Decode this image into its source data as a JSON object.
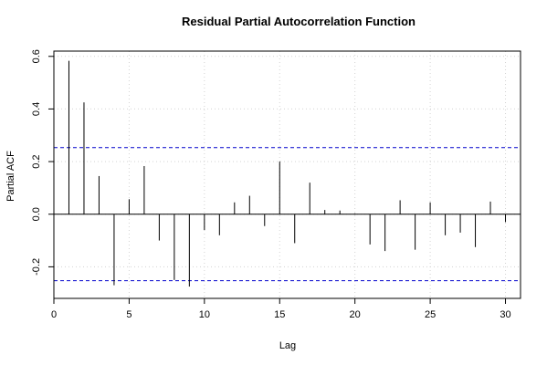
{
  "chart_data": {
    "type": "bar",
    "title": "Residual Partial Autocorrelation Function",
    "xlabel": "Lag",
    "ylabel": "Partial ACF",
    "xlim": [
      0,
      31
    ],
    "ylim": [
      -0.32,
      0.62
    ],
    "x_ticks": [
      0,
      5,
      10,
      15,
      20,
      25,
      30
    ],
    "y_ticks": [
      -0.2,
      0.0,
      0.2,
      0.4,
      0.6
    ],
    "x_tick_labels": [
      "0",
      "5",
      "10",
      "15",
      "20",
      "25",
      "30"
    ],
    "y_tick_labels": [
      "-0.2",
      "0.0",
      "0.2",
      "0.4",
      "0.6"
    ],
    "lags": [
      1,
      2,
      3,
      4,
      5,
      6,
      7,
      8,
      9,
      10,
      11,
      12,
      13,
      14,
      15,
      16,
      17,
      18,
      19,
      20,
      21,
      22,
      23,
      24,
      25,
      26,
      27,
      28,
      29,
      30
    ],
    "values": [
      0.583,
      0.425,
      0.145,
      -0.27,
      0.057,
      0.183,
      -0.1,
      -0.25,
      -0.275,
      -0.06,
      -0.08,
      0.045,
      0.07,
      -0.045,
      0.2,
      -0.11,
      0.12,
      0.016,
      0.014,
      0.003,
      -0.115,
      -0.14,
      0.053,
      -0.135,
      0.045,
      -0.08,
      -0.07,
      -0.125,
      0.048,
      -0.03
    ],
    "confidence_limit": 0.253,
    "grid": true,
    "colors": {
      "bars": "#000000",
      "confidence_lines": "#0000cc",
      "grid": "#d3d3d3",
      "zero_line": "#000000",
      "frame": "#000000"
    }
  }
}
